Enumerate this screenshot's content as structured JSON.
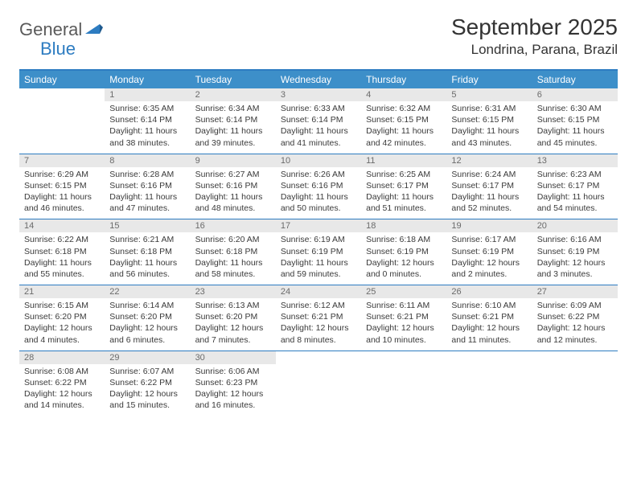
{
  "brand": {
    "part1": "General",
    "part2": "Blue"
  },
  "title": "September 2025",
  "location": "Londrina, Parana, Brazil",
  "colors": {
    "header_bg": "#3d8fc9",
    "accent": "#2d7cc1",
    "daynum_bg": "#e8e8e8",
    "daynum_text": "#6b6b6b",
    "body_text": "#3a3a3a",
    "title_text": "#333333"
  },
  "typography": {
    "title_fontsize": 28,
    "location_fontsize": 17,
    "weekday_fontsize": 12,
    "daynum_fontsize": 11,
    "body_fontsize": 10.5
  },
  "weekdays": [
    "Sunday",
    "Monday",
    "Tuesday",
    "Wednesday",
    "Thursday",
    "Friday",
    "Saturday"
  ],
  "labels": {
    "sunrise": "Sunrise:",
    "sunset": "Sunset:",
    "daylight": "Daylight:"
  },
  "weeks": [
    [
      {
        "day": null
      },
      {
        "day": 1,
        "sunrise": "6:35 AM",
        "sunset": "6:14 PM",
        "daylight": "11 hours and 38 minutes."
      },
      {
        "day": 2,
        "sunrise": "6:34 AM",
        "sunset": "6:14 PM",
        "daylight": "11 hours and 39 minutes."
      },
      {
        "day": 3,
        "sunrise": "6:33 AM",
        "sunset": "6:14 PM",
        "daylight": "11 hours and 41 minutes."
      },
      {
        "day": 4,
        "sunrise": "6:32 AM",
        "sunset": "6:15 PM",
        "daylight": "11 hours and 42 minutes."
      },
      {
        "day": 5,
        "sunrise": "6:31 AM",
        "sunset": "6:15 PM",
        "daylight": "11 hours and 43 minutes."
      },
      {
        "day": 6,
        "sunrise": "6:30 AM",
        "sunset": "6:15 PM",
        "daylight": "11 hours and 45 minutes."
      }
    ],
    [
      {
        "day": 7,
        "sunrise": "6:29 AM",
        "sunset": "6:15 PM",
        "daylight": "11 hours and 46 minutes."
      },
      {
        "day": 8,
        "sunrise": "6:28 AM",
        "sunset": "6:16 PM",
        "daylight": "11 hours and 47 minutes."
      },
      {
        "day": 9,
        "sunrise": "6:27 AM",
        "sunset": "6:16 PM",
        "daylight": "11 hours and 48 minutes."
      },
      {
        "day": 10,
        "sunrise": "6:26 AM",
        "sunset": "6:16 PM",
        "daylight": "11 hours and 50 minutes."
      },
      {
        "day": 11,
        "sunrise": "6:25 AM",
        "sunset": "6:17 PM",
        "daylight": "11 hours and 51 minutes."
      },
      {
        "day": 12,
        "sunrise": "6:24 AM",
        "sunset": "6:17 PM",
        "daylight": "11 hours and 52 minutes."
      },
      {
        "day": 13,
        "sunrise": "6:23 AM",
        "sunset": "6:17 PM",
        "daylight": "11 hours and 54 minutes."
      }
    ],
    [
      {
        "day": 14,
        "sunrise": "6:22 AM",
        "sunset": "6:18 PM",
        "daylight": "11 hours and 55 minutes."
      },
      {
        "day": 15,
        "sunrise": "6:21 AM",
        "sunset": "6:18 PM",
        "daylight": "11 hours and 56 minutes."
      },
      {
        "day": 16,
        "sunrise": "6:20 AM",
        "sunset": "6:18 PM",
        "daylight": "11 hours and 58 minutes."
      },
      {
        "day": 17,
        "sunrise": "6:19 AM",
        "sunset": "6:19 PM",
        "daylight": "11 hours and 59 minutes."
      },
      {
        "day": 18,
        "sunrise": "6:18 AM",
        "sunset": "6:19 PM",
        "daylight": "12 hours and 0 minutes."
      },
      {
        "day": 19,
        "sunrise": "6:17 AM",
        "sunset": "6:19 PM",
        "daylight": "12 hours and 2 minutes."
      },
      {
        "day": 20,
        "sunrise": "6:16 AM",
        "sunset": "6:19 PM",
        "daylight": "12 hours and 3 minutes."
      }
    ],
    [
      {
        "day": 21,
        "sunrise": "6:15 AM",
        "sunset": "6:20 PM",
        "daylight": "12 hours and 4 minutes."
      },
      {
        "day": 22,
        "sunrise": "6:14 AM",
        "sunset": "6:20 PM",
        "daylight": "12 hours and 6 minutes."
      },
      {
        "day": 23,
        "sunrise": "6:13 AM",
        "sunset": "6:20 PM",
        "daylight": "12 hours and 7 minutes."
      },
      {
        "day": 24,
        "sunrise": "6:12 AM",
        "sunset": "6:21 PM",
        "daylight": "12 hours and 8 minutes."
      },
      {
        "day": 25,
        "sunrise": "6:11 AM",
        "sunset": "6:21 PM",
        "daylight": "12 hours and 10 minutes."
      },
      {
        "day": 26,
        "sunrise": "6:10 AM",
        "sunset": "6:21 PM",
        "daylight": "12 hours and 11 minutes."
      },
      {
        "day": 27,
        "sunrise": "6:09 AM",
        "sunset": "6:22 PM",
        "daylight": "12 hours and 12 minutes."
      }
    ],
    [
      {
        "day": 28,
        "sunrise": "6:08 AM",
        "sunset": "6:22 PM",
        "daylight": "12 hours and 14 minutes."
      },
      {
        "day": 29,
        "sunrise": "6:07 AM",
        "sunset": "6:22 PM",
        "daylight": "12 hours and 15 minutes."
      },
      {
        "day": 30,
        "sunrise": "6:06 AM",
        "sunset": "6:23 PM",
        "daylight": "12 hours and 16 minutes."
      },
      {
        "day": null
      },
      {
        "day": null
      },
      {
        "day": null
      },
      {
        "day": null
      }
    ]
  ]
}
